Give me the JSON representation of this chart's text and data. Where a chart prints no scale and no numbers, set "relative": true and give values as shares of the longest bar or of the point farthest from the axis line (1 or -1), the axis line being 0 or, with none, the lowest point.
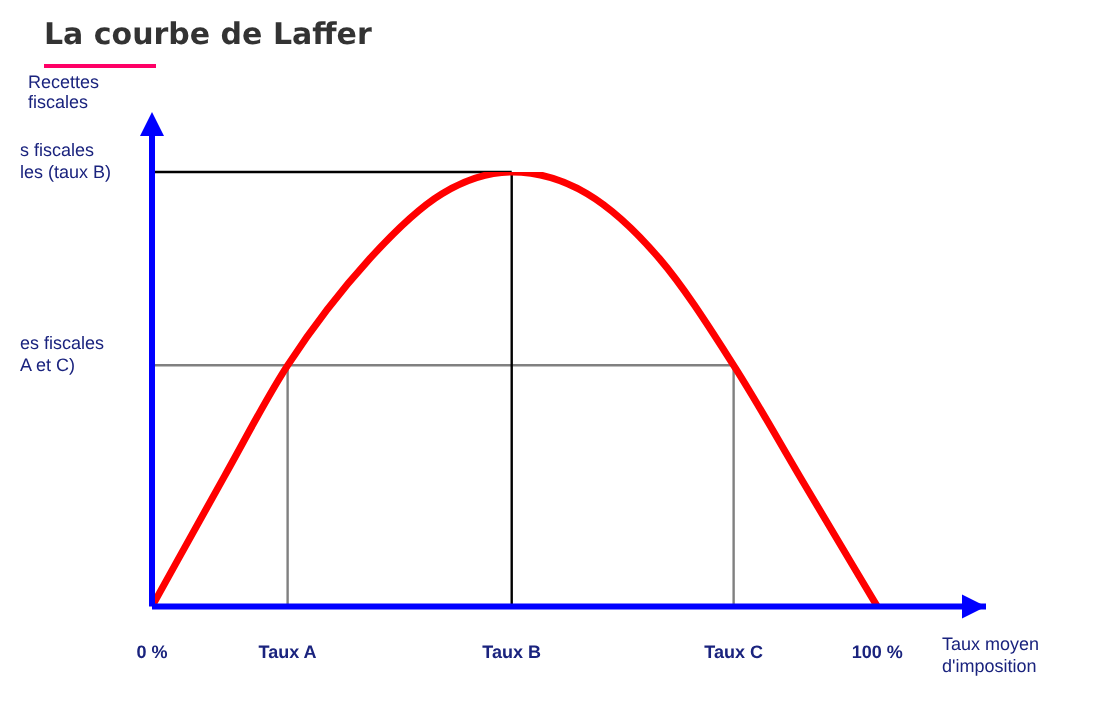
{
  "chart_data": {
    "type": "line",
    "title": "La courbe de Laffer",
    "xlabel": "Taux moyen d'imposition",
    "ylabel": "Recettes fiscales",
    "relative": true,
    "x": [
      0,
      10,
      18.7,
      30,
      40,
      49.6,
      60,
      70,
      80.2,
      90,
      100
    ],
    "series": [
      {
        "color": "#ff0000",
        "values": [
          0,
          0.3,
          0.555,
          0.8,
          0.95,
          1,
          0.95,
          0.8,
          0.555,
          0.28,
          0
        ]
      }
    ],
    "xlim": [
      0,
      115
    ],
    "xticks": [
      {
        "value": 0,
        "label": "0 %"
      },
      {
        "value": 18.7,
        "label": "Taux A"
      },
      {
        "value": 49.6,
        "label": "Taux B"
      },
      {
        "value": 80.2,
        "label": "Taux C"
      },
      {
        "value": 100,
        "label": "100 %"
      }
    ],
    "ref_lines": [
      {
        "axis": "y",
        "value": 1,
        "label": "s fiscales\nles (taux B)",
        "color": "#000000"
      },
      {
        "axis": "y",
        "value": 0.555,
        "label": "es fiscales\nA et C)",
        "color": "#808080"
      },
      {
        "axis": "x",
        "value": 18.7,
        "color": "#808080"
      },
      {
        "axis": "x",
        "value": 49.6,
        "color": "#000000"
      },
      {
        "axis": "x",
        "value": 80.2,
        "color": "#808080"
      }
    ],
    "grid": false,
    "legend": false,
    "marker": "none",
    "line_style": "solid"
  }
}
